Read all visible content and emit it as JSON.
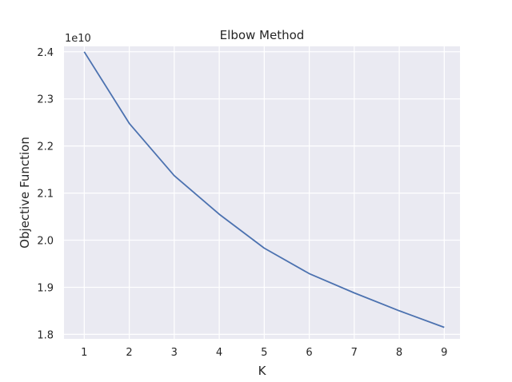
{
  "chart_data": {
    "type": "line",
    "title": "Elbow Method",
    "xlabel": "K",
    "ylabel": "Objective Function",
    "offset_label": "1e10",
    "x": [
      1,
      2,
      3,
      4,
      5,
      6,
      7,
      8,
      9
    ],
    "series": [
      {
        "values": [
          2.4,
          2.248,
          2.137,
          2.055,
          1.983,
          1.929,
          1.888,
          1.85,
          1.815
        ],
        "color": "#4c72b0"
      }
    ],
    "xticks": [
      "1",
      "2",
      "3",
      "4",
      "5",
      "6",
      "7",
      "8",
      "9"
    ],
    "yticks": [
      "1.8",
      "1.9",
      "2.0",
      "2.1",
      "2.2",
      "2.3",
      "2.4"
    ],
    "xlim": [
      0.55,
      9.35
    ],
    "ylim": [
      1.7905,
      2.4115
    ],
    "grid": true,
    "background": "#eaeaf2"
  }
}
